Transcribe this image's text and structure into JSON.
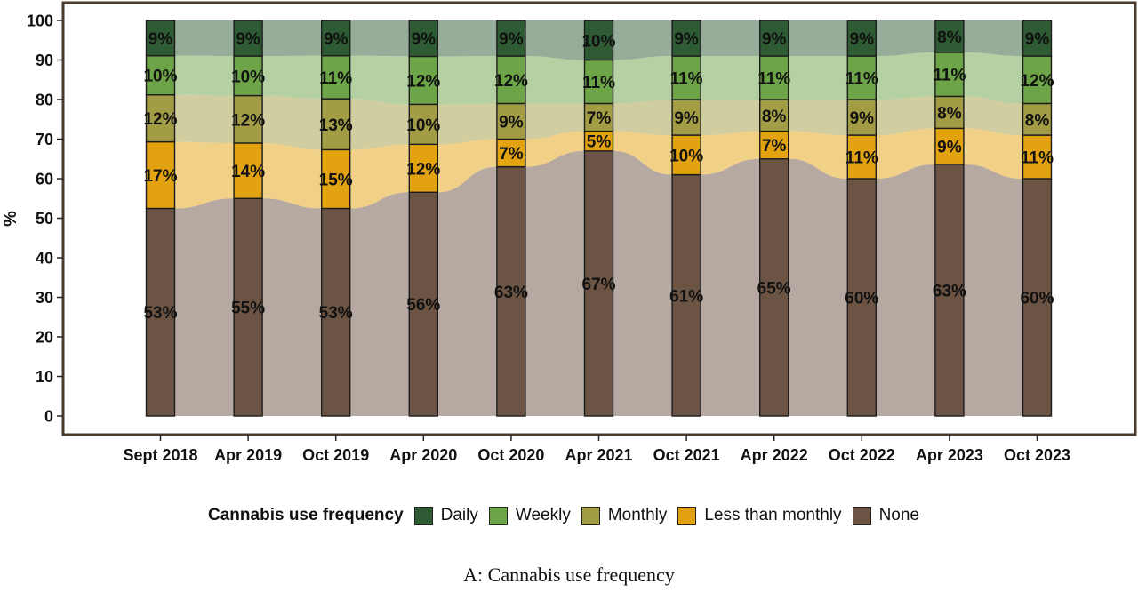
{
  "chart_data": {
    "type": "bar",
    "subtype": "alluvial stacked 100% bars",
    "categories": [
      "Sept 2018",
      "Apr 2019",
      "Oct 2019",
      "Apr 2020",
      "Oct 2020",
      "Apr 2021",
      "Oct 2021",
      "Apr 2022",
      "Oct 2022",
      "Apr 2023",
      "Oct 2023"
    ],
    "series": [
      {
        "name": "None",
        "color": "#6b5444",
        "values": [
          53,
          55,
          53,
          56,
          63,
          67,
          61,
          65,
          60,
          63,
          60
        ]
      },
      {
        "name": "Less than monthly",
        "color": "#e3a20f",
        "values": [
          17,
          14,
          15,
          12,
          7,
          5,
          10,
          7,
          11,
          9,
          11
        ]
      },
      {
        "name": "Monthly",
        "color": "#a29c44",
        "values": [
          12,
          12,
          13,
          10,
          9,
          7,
          9,
          8,
          9,
          8,
          8
        ]
      },
      {
        "name": "Weekly",
        "color": "#6ca447",
        "values": [
          10,
          10,
          11,
          12,
          12,
          11,
          11,
          11,
          11,
          11,
          12
        ]
      },
      {
        "name": "Daily",
        "color": "#2e5b33",
        "values": [
          9,
          9,
          9,
          9,
          9,
          10,
          9,
          9,
          9,
          8,
          9
        ]
      }
    ],
    "segment_labels": [
      [
        "53%",
        "17%",
        "12%",
        "10%",
        "9%"
      ],
      [
        "55%",
        "14%",
        "12%",
        "10%",
        "9%"
      ],
      [
        "53%",
        "15%",
        "13%",
        "11%",
        "9%"
      ],
      [
        "56%",
        "12%",
        "10%",
        "12%",
        "9%"
      ],
      [
        "63%",
        "7%",
        "9%",
        "12%",
        "9%"
      ],
      [
        "67%",
        "5%",
        "7%",
        "11%",
        "10%"
      ],
      [
        "61%",
        "10%",
        "9%",
        "11%",
        "9%"
      ],
      [
        "65%",
        "7%",
        "8%",
        "11%",
        "9%"
      ],
      [
        "60%",
        "11%",
        "9%",
        "11%",
        "9%"
      ],
      [
        "63%",
        "9%",
        "8%",
        "11%",
        "8%"
      ],
      [
        "60%",
        "11%",
        "8%",
        "12%",
        "9%"
      ]
    ],
    "ylabel": "%",
    "ylim": [
      0,
      100
    ],
    "yticks": [
      "0",
      "10",
      "20",
      "30",
      "40",
      "50",
      "60",
      "70",
      "80",
      "90",
      "100"
    ],
    "legend_position": "bottom",
    "grid": false
  },
  "legend": {
    "title": "Cannabis use frequency",
    "items": [
      {
        "label": "Daily",
        "color": "#2e5b33"
      },
      {
        "label": "Weekly",
        "color": "#6ca447"
      },
      {
        "label": "Monthly",
        "color": "#a29c44"
      },
      {
        "label": "Less than monthly",
        "color": "#e3a20f"
      },
      {
        "label": "None",
        "color": "#6b5444"
      }
    ]
  },
  "caption": "A: Cannabis use frequency"
}
